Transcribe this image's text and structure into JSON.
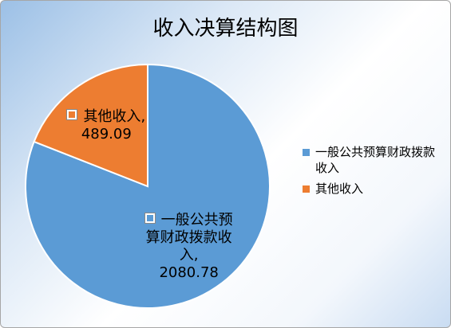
{
  "chart_data": {
    "type": "pie",
    "title": "收入决算结构图",
    "categories": [
      "一般公共预算财政拨款收入",
      "其他收入"
    ],
    "values": [
      2080.78,
      489.09
    ],
    "colors": [
      "#5b9bd5",
      "#ed7d31"
    ],
    "legend": "right"
  }
}
